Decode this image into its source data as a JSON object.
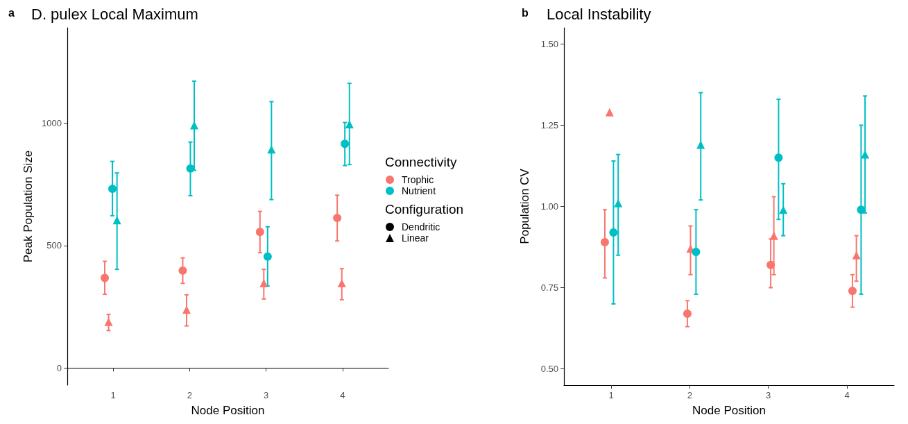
{
  "chart_data": [
    {
      "type": "scatter",
      "title": "D. pulex Local Maximum",
      "xlabel": "Node Position",
      "ylabel": "Peak Population Size",
      "legend": "right",
      "legend_title": "Connectivity",
      "annotations": [
        "a",
        "Configuration",
        "Dendritic",
        "Linear"
      ],
      "xlim": [
        0.4,
        4.6
      ],
      "xticks": [
        1,
        2,
        3,
        4
      ],
      "ylim": [
        -70,
        1390
      ],
      "yticks": [
        0,
        500,
        1000
      ],
      "grid": false,
      "series": [
        {
          "name": "Trophic",
          "color": "#f8766d",
          "marker": "circle",
          "x": [
            0.89,
            1.91,
            2.92,
            3.93
          ],
          "values": [
            368,
            398,
            556,
            613
          ],
          "errors": [
            [
              301,
              436
            ],
            [
              346,
              450
            ],
            [
              471,
              640
            ],
            [
              519,
              706
            ]
          ]
        },
        {
          "color": "#f8766d",
          "marker": "triangle",
          "x": [
            0.94,
            1.96,
            2.97,
            3.99
          ],
          "values": [
            189,
            238,
            347,
            347
          ],
          "errors": [
            [
              153,
              219
            ],
            [
              172,
              299
            ],
            [
              282,
              403
            ],
            [
              279,
              406
            ]
          ]
        },
        {
          "name": "Nutrient",
          "color": "#00bfc4",
          "marker": "circle",
          "x": [
            0.99,
            2.01,
            3.02,
            4.03
          ],
          "values": [
            732,
            815,
            455,
            916
          ],
          "errors": [
            [
              622,
              844
            ],
            [
              704,
              923
            ],
            [
              335,
              577
            ],
            [
              827,
              1003
            ]
          ]
        },
        {
          "color": "#00bfc4",
          "marker": "triangle",
          "x": [
            1.05,
            2.06,
            3.07,
            4.09
          ],
          "values": [
            604,
            992,
            893,
            996
          ],
          "errors": [
            [
              403,
              797
            ],
            [
              808,
              1172
            ],
            [
              688,
              1088
            ],
            [
              831,
              1163
            ]
          ]
        }
      ]
    },
    {
      "type": "scatter",
      "title": "Local Instability",
      "xlabel": "Node Position",
      "ylabel": "Population CV",
      "annotations": [
        "b"
      ],
      "xlim": [
        0.4,
        4.6
      ],
      "xticks": [
        1,
        2,
        3,
        4
      ],
      "ylim": [
        0.45,
        1.55
      ],
      "yticks": [
        {
          "value": 0.5,
          "label": "0.50"
        },
        0.75,
        {
          "value": 1,
          "label": "1.00"
        },
        1.25,
        {
          "value": 1.5,
          "label": "1.50"
        }
      ],
      "grid": false,
      "series": [
        {
          "color": "#f8766d",
          "marker": "circle",
          "x": [
            0.92,
            1.97,
            3.03,
            4.07
          ],
          "values": [
            0.89,
            0.67,
            0.82,
            0.74
          ],
          "errors": [
            [
              0.78,
              0.99
            ],
            [
              0.63,
              0.71
            ],
            [
              0.75,
              0.9
            ],
            [
              0.69,
              0.79
            ]
          ]
        },
        {
          "color": "#f8766d",
          "marker": "triangle",
          "x": [
            0.98,
            2.01,
            3.07,
            4.12
          ],
          "values": [
            1.29,
            0.87,
            0.91,
            0.85
          ],
          "errors": [
            null,
            [
              0.79,
              0.94
            ],
            [
              0.79,
              1.03
            ],
            [
              0.77,
              0.91
            ]
          ]
        },
        {
          "color": "#00bfc4",
          "marker": "circle",
          "x": [
            1.03,
            2.08,
            3.13,
            4.18
          ],
          "values": [
            0.92,
            0.86,
            1.15,
            0.99
          ],
          "errors": [
            [
              0.7,
              1.14
            ],
            [
              0.73,
              0.99
            ],
            [
              0.96,
              1.33
            ],
            [
              0.73,
              1.25
            ]
          ]
        },
        {
          "color": "#00bfc4",
          "marker": "triangle",
          "x": [
            1.09,
            2.14,
            3.19,
            4.23
          ],
          "values": [
            1.01,
            1.19,
            0.99,
            1.16
          ],
          "errors": [
            [
              0.85,
              1.16
            ],
            [
              1.02,
              1.35
            ],
            [
              0.91,
              1.07
            ],
            [
              0.98,
              1.34
            ]
          ]
        }
      ]
    }
  ]
}
